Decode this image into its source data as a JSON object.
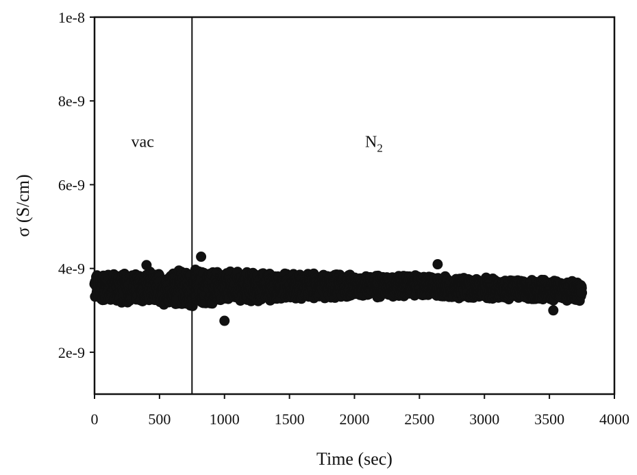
{
  "chart_data": {
    "type": "scatter",
    "title": "",
    "xlabel": "Time (sec)",
    "ylabel": "σ (S/cm)",
    "xlim": [
      0,
      4000
    ],
    "ylim": [
      1e-09,
      1e-08
    ],
    "x_ticks": [
      0,
      500,
      1000,
      1500,
      2000,
      2500,
      3000,
      3500,
      4000
    ],
    "x_tick_labels": [
      "0",
      "500",
      "1000",
      "1500",
      "2000",
      "2500",
      "3000",
      "3500",
      "4000"
    ],
    "y_ticks": [
      2e-09,
      4e-09,
      6e-09,
      8e-09,
      1e-08
    ],
    "y_tick_labels": [
      "2e-9",
      "4e-9",
      "6e-9",
      "8e-9",
      "1e-8"
    ],
    "grid": false,
    "marker_color": "#111111",
    "vertical_line": {
      "x": 750
    },
    "annotations": [
      {
        "text": "vac",
        "x": 370,
        "y": 6.9e-09
      },
      {
        "text": "N",
        "subscript": "2",
        "x": 2150,
        "y": 6.9e-09
      }
    ],
    "series": [
      {
        "x_range": [
          0,
          3750
        ],
        "center_profile": [
          [
            0,
            3.55e-09
          ],
          [
            500,
            3.52e-09
          ],
          [
            1000,
            3.55e-09
          ],
          [
            1500,
            3.57e-09
          ],
          [
            2000,
            3.58e-09
          ],
          [
            2500,
            3.58e-09
          ],
          [
            3000,
            3.52e-09
          ],
          [
            3500,
            3.48e-09
          ],
          [
            3750,
            3.48e-09
          ]
        ],
        "halfwidth_profile": [
          [
            0,
            3.6e-10
          ],
          [
            500,
            4.2e-10
          ],
          [
            750,
            4.8e-10
          ],
          [
            1000,
            4.2e-10
          ],
          [
            1500,
            3.4e-10
          ],
          [
            2000,
            3e-10
          ],
          [
            2500,
            2.8e-10
          ],
          [
            3000,
            2.7e-10
          ],
          [
            3500,
            2.6e-10
          ],
          [
            3750,
            2.6e-10
          ]
        ],
        "outliers": [
          [
            820,
            4.28e-09
          ],
          [
            1000,
            2.75e-09
          ],
          [
            2640,
            4.1e-09
          ],
          [
            3530,
            3e-09
          ],
          [
            400,
            4.08e-09
          ]
        ]
      }
    ]
  }
}
